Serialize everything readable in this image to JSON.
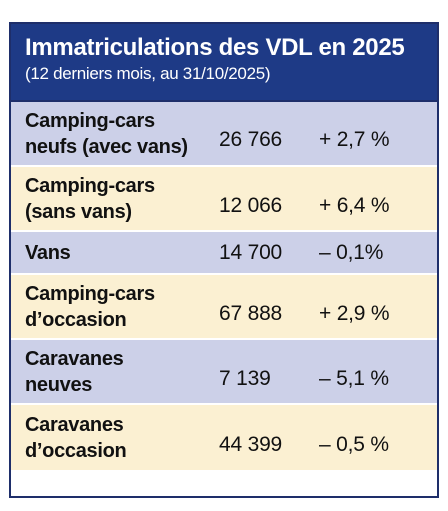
{
  "table": {
    "title": "Immatriculations des VDL en 2025",
    "subtitle": "(12 derniers mois, au 31/10/2025)",
    "rows": [
      {
        "label_line1": "Camping-cars",
        "label_line2": "neufs (avec vans)",
        "value": "26 766",
        "change": "+ 2,7 %"
      },
      {
        "label_line1": "Camping-cars",
        "label_line2": "(sans vans)",
        "value": "12 066",
        "change": "+ 6,4 %"
      },
      {
        "label_line1": "Vans",
        "label_line2": "",
        "value": "14 700",
        "change": "– 0,1%"
      },
      {
        "label_line1": "Camping-cars",
        "label_line2": "d’occasion",
        "value": "67 888",
        "change": "+ 2,9 %"
      },
      {
        "label_line1": "Caravanes",
        "label_line2": "neuves",
        "value": "7 139",
        "change": "– 5,1 %"
      },
      {
        "label_line1": "Caravanes",
        "label_line2": "d’occasion",
        "value": "44 399",
        "change": "– 0,5 %"
      }
    ]
  },
  "colors": {
    "header_bg": "#1e3a86",
    "row_blue": "#ccd0e8",
    "row_cream": "#fbf0d2",
    "border": "#1e2e6a"
  }
}
